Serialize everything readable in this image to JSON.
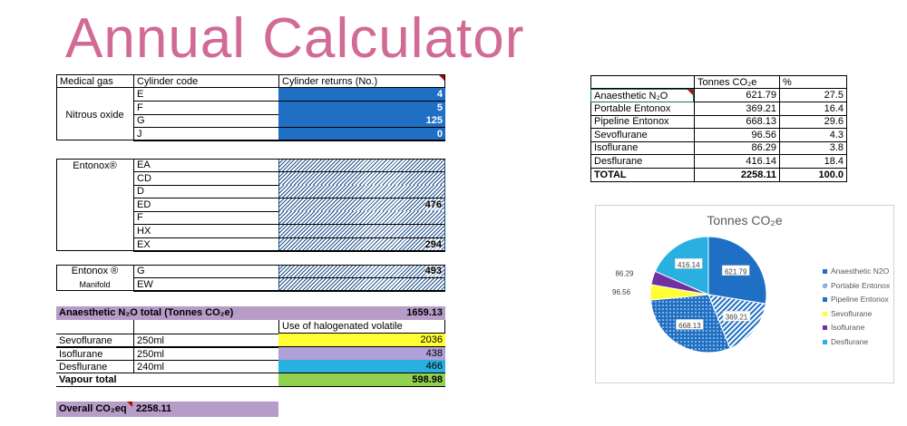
{
  "title": "Annual Calculator",
  "colors": {
    "title_pink": "#d16a95",
    "cylinder_blue": "#1f6fc4",
    "hatch_navy": "#1f4f8a",
    "purple_band": "#b79cc8",
    "sevoflurane_yellow": "#ffff33",
    "isoflurane_lavender": "#b0a0d8",
    "desflurane_cyan": "#2ab0e0",
    "vapour_green": "#92d050"
  },
  "headers": {
    "medical_gas": "Medical gas",
    "cylinder_code": "Cylinder code",
    "cylinder_returns": "Cylinder returns (No.)"
  },
  "nitrous": {
    "label": "Nitrous oxide",
    "rows": [
      {
        "code": "E",
        "value": "4"
      },
      {
        "code": "F",
        "value": "5"
      },
      {
        "code": "G",
        "value": "125"
      },
      {
        "code": "J",
        "value": "0"
      }
    ]
  },
  "entonox": {
    "label": "Entonox®",
    "rows": [
      {
        "code": "EA",
        "value": ""
      },
      {
        "code": "CD",
        "value": ""
      },
      {
        "code": "D",
        "value": ""
      },
      {
        "code": "ED",
        "value": "476"
      },
      {
        "code": "F",
        "value": ""
      },
      {
        "code": "HX",
        "value": ""
      },
      {
        "code": "EX",
        "value": "294"
      }
    ]
  },
  "entonox_manifold": {
    "label": "Entonox ®",
    "sublabel": "Manifold",
    "rows": [
      {
        "code": "G",
        "value": "493"
      },
      {
        "code": "EW",
        "value": ""
      }
    ]
  },
  "anaesthetic_total": {
    "label": "Anaesthetic N₂O total (Tonnes CO₂e)",
    "value": "1659.13"
  },
  "halogenated": {
    "header": "Use of halogenated volatile",
    "rows": [
      {
        "name": "Sevoflurane",
        "size": "250ml",
        "value": "2036"
      },
      {
        "name": "Isoflurane",
        "size": "250ml",
        "value": "438"
      },
      {
        "name": "Desflurane",
        "size": "240ml",
        "value": "466"
      }
    ],
    "vapour_total_label": "Vapour total",
    "vapour_total_value": "598.98"
  },
  "overall": {
    "label": "Overall CO₂eq",
    "value": "2258.11"
  },
  "summary": {
    "col_tonnes": "Tonnes CO₂e",
    "col_pct": "%",
    "rows": [
      {
        "name": "Anaesthetic N₂O",
        "tonnes": "621.79",
        "pct": "27.5"
      },
      {
        "name": "Portable Entonox",
        "tonnes": "369.21",
        "pct": "16.4"
      },
      {
        "name": "Pipeline Entonox",
        "tonnes": "668.13",
        "pct": "29.6"
      },
      {
        "name": "Sevoflurane",
        "tonnes": "96.56",
        "pct": "4.3"
      },
      {
        "name": "Isoflurane",
        "tonnes": "86.29",
        "pct": "3.8"
      },
      {
        "name": "Desflurane",
        "tonnes": "416.14",
        "pct": "18.4"
      }
    ],
    "total_label": "TOTAL",
    "total_tonnes": "2258.11",
    "total_pct": "100.0"
  },
  "chart_data": {
    "type": "pie",
    "title": "Tonnes CO₂e",
    "legend_position": "right",
    "slices": [
      {
        "label": "Anaesthetic N2O",
        "value": 621.79,
        "data_label": "621.79",
        "color": "#1f6fc4",
        "pattern": "solid"
      },
      {
        "label": "Portable Entonox",
        "value": 369.21,
        "data_label": "369.21",
        "color": "#1f6fc4",
        "pattern": "diagonal"
      },
      {
        "label": "Pipeline Entonox",
        "value": 668.13,
        "data_label": "668.13",
        "color": "#1f6fc4",
        "pattern": "dots"
      },
      {
        "label": "Sevoflurane",
        "value": 96.56,
        "data_label": "96.56",
        "color": "#ffff33",
        "pattern": "solid"
      },
      {
        "label": "Isoflurane",
        "value": 86.29,
        "data_label": "86.29",
        "color": "#7030a0",
        "pattern": "solid"
      },
      {
        "label": "Desflurane",
        "value": 416.14,
        "data_label": "416.14",
        "color": "#2ab0e0",
        "pattern": "solid"
      }
    ]
  }
}
